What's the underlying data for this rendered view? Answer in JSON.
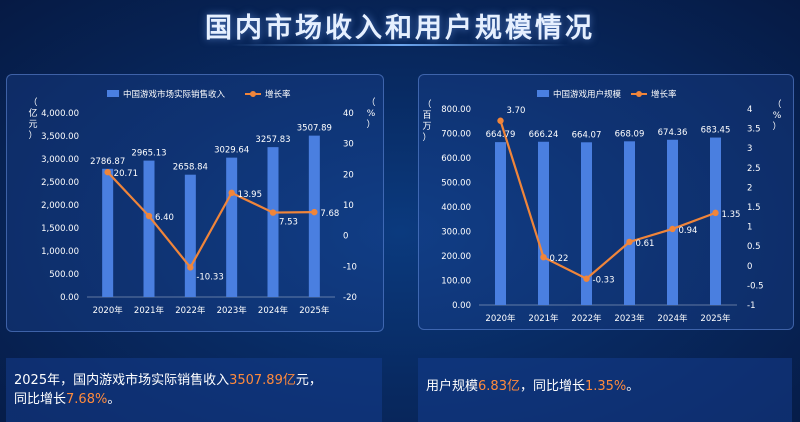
{
  "page": {
    "title": "国内市场收入和用户规模情况"
  },
  "chart_data": [
    {
      "type": "bar+line",
      "categories": [
        "2020年",
        "2021年",
        "2022年",
        "2023年",
        "2024年",
        "2025年"
      ],
      "series": [
        {
          "name": "中国游戏市场实际销售收入",
          "kind": "bar",
          "axis": "left",
          "values": [
            2786.87,
            2965.13,
            2658.84,
            3029.64,
            3257.83,
            3507.89
          ],
          "labels": [
            "2786.87",
            "2965.13",
            "2658.84",
            "3029.64",
            "3257.83",
            "3507.89"
          ]
        },
        {
          "name": "增长率",
          "kind": "line",
          "axis": "right",
          "values": [
            20.71,
            6.4,
            -10.33,
            13.95,
            7.53,
            7.68
          ],
          "labels": [
            "20.71",
            "6.40",
            "-10.33",
            "13.95",
            "7.53",
            "7.68"
          ]
        }
      ],
      "left_axis": {
        "label_chars": [
          "（",
          "亿",
          "元",
          "）"
        ],
        "ticks": [
          "0.00",
          "500.00",
          "1,000.00",
          "1,500.00",
          "2,000.00",
          "2,500.00",
          "3,000.00",
          "3,500.00",
          "4,000.00"
        ],
        "ylim": [
          0,
          4000
        ]
      },
      "right_axis": {
        "label_chars": [
          "（",
          "%",
          "）"
        ],
        "ticks": [
          "-20",
          "-10",
          "0",
          "10",
          "20",
          "30",
          "40"
        ],
        "ylim": [
          -20,
          40
        ]
      },
      "legend_placement": "top",
      "bar_color": "#4a7fe0",
      "line_color": "#f0853a"
    },
    {
      "type": "bar+line",
      "categories": [
        "2020年",
        "2021年",
        "2022年",
        "2023年",
        "2024年",
        "2025年"
      ],
      "series": [
        {
          "name": "中国游戏用户规模",
          "kind": "bar",
          "axis": "left",
          "values": [
            664.79,
            666.24,
            664.07,
            668.09,
            674.36,
            683.45
          ],
          "labels": [
            "664.79",
            "666.24",
            "664.07",
            "668.09",
            "674.36",
            "683.45"
          ]
        },
        {
          "name": "增长率",
          "kind": "line",
          "axis": "right",
          "values": [
            3.7,
            0.22,
            -0.33,
            0.61,
            0.94,
            1.35
          ],
          "labels": [
            "3.70",
            "0.22",
            "-0.33",
            "0.61",
            "0.94",
            "1.35"
          ]
        }
      ],
      "left_axis": {
        "label_chars": [
          "（",
          "百",
          "万",
          "）"
        ],
        "ticks": [
          "0.00",
          "100.00",
          "200.00",
          "300.00",
          "400.00",
          "500.00",
          "600.00",
          "700.00",
          "800.00"
        ],
        "ylim": [
          0,
          800
        ]
      },
      "right_axis": {
        "label_chars": [
          "（",
          "%",
          "）"
        ],
        "ticks": [
          "-1",
          "-0.5",
          "0",
          "0.5",
          "1",
          "1.5",
          "2",
          "2.5",
          "3",
          "3.5",
          "4"
        ],
        "ylim": [
          -1,
          4
        ]
      },
      "legend_placement": "top",
      "bar_color": "#4a7fe0",
      "line_color": "#f0853a"
    }
  ],
  "summary_left": {
    "line1_a": "2025年，国内游戏市场实际销售收入",
    "line1_b": "3507.89亿",
    "line1_c": "元，",
    "line2_a": "同比增长",
    "line2_b": "7.68%",
    "line2_c": "。"
  },
  "summary_right": {
    "a": "用户规模",
    "b": "6.83亿",
    "c": "，同比增长",
    "d": "1.35%",
    "e": "。"
  }
}
